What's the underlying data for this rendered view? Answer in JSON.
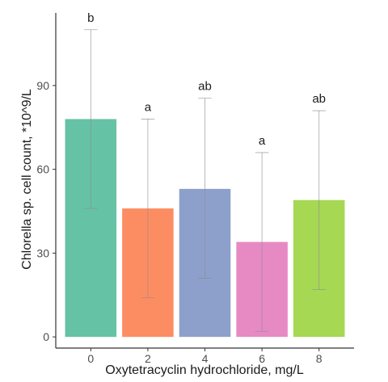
{
  "chart_data": {
    "type": "bar",
    "title": "",
    "xlabel": "Oxytetracyclin hydrochloride, mg/L",
    "ylabel": "Chlorella sp. cell count, *10^9/L",
    "categories": [
      "0",
      "2",
      "4",
      "6",
      "8"
    ],
    "values": [
      78,
      46,
      53,
      34,
      49
    ],
    "error_low": [
      46,
      14,
      21,
      2,
      17
    ],
    "error_high": [
      110,
      78,
      85.5,
      66,
      81
    ],
    "significance_labels": [
      "b",
      "a",
      "ab",
      "a",
      "ab"
    ],
    "colors": [
      "#66c2a5",
      "#fc8d62",
      "#8da0cb",
      "#e78ac3",
      "#a6d854"
    ],
    "y_ticks": [
      0,
      30,
      60,
      90
    ],
    "ylim": [
      -4,
      116
    ],
    "grid": false,
    "legend": "none"
  }
}
